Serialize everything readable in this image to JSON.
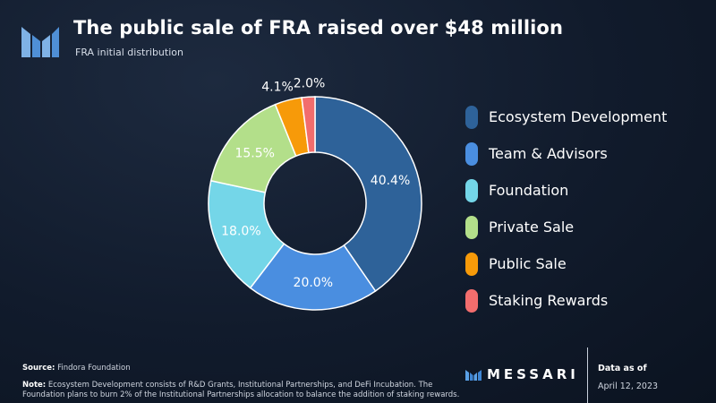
{
  "header": {
    "title": "The public sale of FRA raised over $48 million",
    "subtitle": "FRA initial distribution"
  },
  "chart_data": {
    "type": "pie",
    "style": "donut",
    "title": "The public sale of FRA raised over $48 million",
    "subtitle": "FRA initial distribution",
    "categories": [
      "Ecosystem Development",
      "Team & Advisors",
      "Foundation",
      "Private Sale",
      "Public Sale",
      "Staking Rewards"
    ],
    "values": [
      40.4,
      20.0,
      18.0,
      15.5,
      4.1,
      2.0
    ],
    "value_labels": [
      "40.4%",
      "20.0%",
      "18.0%",
      "15.5%",
      "4.1%",
      "2.0%"
    ],
    "colors": [
      "#2e6299",
      "#4a8ee0",
      "#74d6e8",
      "#b3df8a",
      "#f79a09",
      "#f26d6d"
    ],
    "legend_position": "right"
  },
  "legend": {
    "items": [
      {
        "label": "Ecosystem Development",
        "color": "#2e6299"
      },
      {
        "label": "Team & Advisors",
        "color": "#4a8ee0"
      },
      {
        "label": "Foundation",
        "color": "#74d6e8"
      },
      {
        "label": "Private Sale",
        "color": "#b3df8a"
      },
      {
        "label": "Public Sale",
        "color": "#f79a09"
      },
      {
        "label": "Staking Rewards",
        "color": "#f26d6d"
      }
    ]
  },
  "footer": {
    "source_label": "Source:",
    "source_text": "Findora Foundation",
    "note_label": "Note:",
    "note_text": "Ecosystem Development consists of R&D Grants, Institutional Partnerships, and DeFi Incubation. The Foundation plans to burn 2% of the Institutional Partnerships allocation to balance the addition of staking rewards.",
    "brand": "MESSARI",
    "data_as_of_label": "Data as of",
    "data_date": "April 12, 2023"
  }
}
